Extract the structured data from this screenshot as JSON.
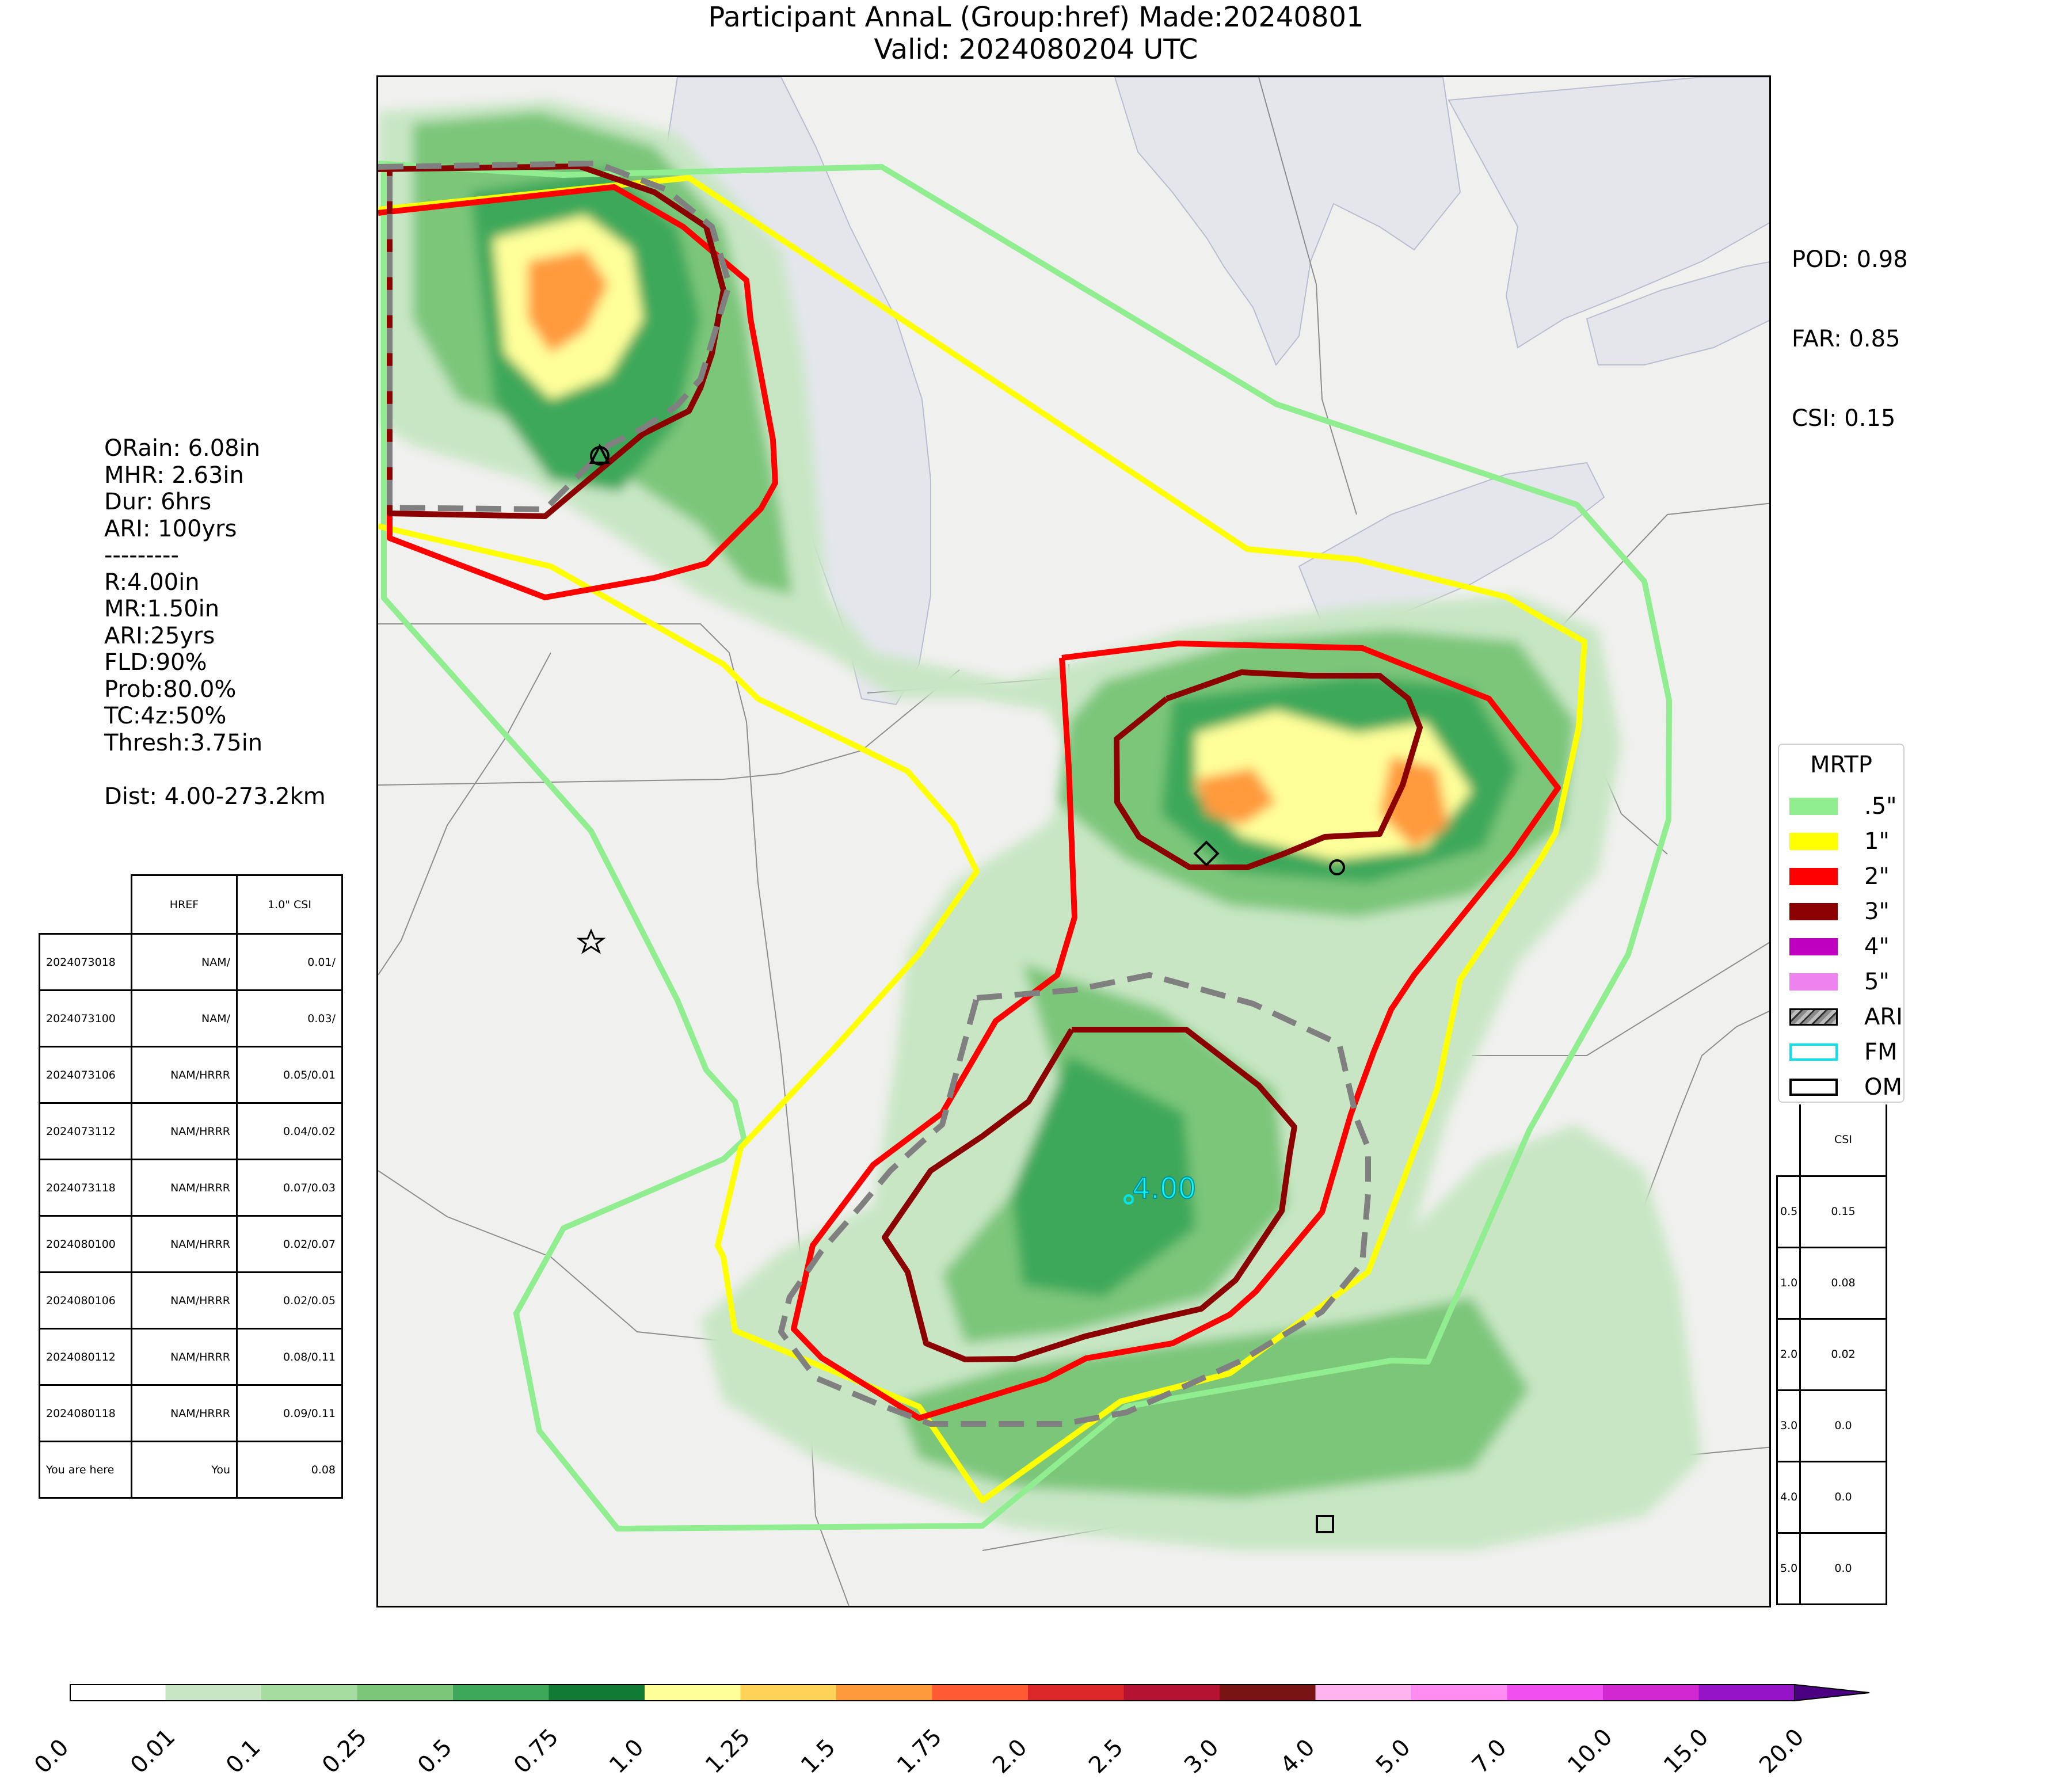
{
  "header": {
    "title_line1": "Participant AnnaL (Group:href) Made:20240801",
    "title_line2": "Valid: 2024080204 UTC"
  },
  "scores": {
    "pod": "POD: 0.98",
    "far": "FAR: 0.85",
    "csi": "CSI: 0.15"
  },
  "info": {
    "lines": [
      "ORain: 6.08in",
      "MHR: 2.63in",
      "Dur: 6hrs",
      "ARI: 100yrs",
      "---------",
      "R:4.00in",
      "MR:1.50in",
      "ARI:25yrs",
      "FLD:90%",
      "Prob:80.0%",
      "TC:4z:50%",
      "Thresh:3.75in",
      "",
      "Dist: 4.00-273.2km"
    ]
  },
  "history_table": {
    "headers": [
      "",
      "HREF",
      "1.0\" CSI"
    ],
    "rows": [
      [
        "2024073018",
        "NAM/",
        "0.01/"
      ],
      [
        "2024073100",
        "NAM/",
        "0.03/"
      ],
      [
        "2024073106",
        "NAM/HRRR",
        "0.05/0.01"
      ],
      [
        "2024073112",
        "NAM/HRRR",
        "0.04/0.02"
      ],
      [
        "2024073118",
        "NAM/HRRR",
        "0.07/0.03"
      ],
      [
        "2024080100",
        "NAM/HRRR",
        "0.02/0.07"
      ],
      [
        "2024080106",
        "NAM/HRRR",
        "0.02/0.05"
      ],
      [
        "2024080112",
        "NAM/HRRR",
        "0.08/0.11"
      ],
      [
        "2024080118",
        "NAM/HRRR",
        "0.09/0.11"
      ],
      [
        "You are here",
        "You",
        "0.08"
      ]
    ]
  },
  "legend": {
    "title": "MRTP",
    "items": [
      {
        "label": ".5\"",
        "color": "#90ee90",
        "type": "fill"
      },
      {
        "label": "1\"",
        "color": "#ffff00",
        "type": "fill"
      },
      {
        "label": "2\"",
        "color": "#ff0000",
        "type": "fill"
      },
      {
        "label": "3\"",
        "color": "#8b0000",
        "type": "fill"
      },
      {
        "label": "4\"",
        "color": "#c000c0",
        "type": "fill"
      },
      {
        "label": "5\"",
        "color": "#ee82ee",
        "type": "fill"
      },
      {
        "label": "ARI",
        "color": "#808080",
        "type": "hatch"
      },
      {
        "label": "FM",
        "color": "#00e5ee",
        "type": "outline"
      },
      {
        "label": "OM",
        "color": "#000000",
        "type": "outline"
      }
    ]
  },
  "category_csi": {
    "header": "CSI",
    "rows": [
      [
        "0.5",
        "0.15"
      ],
      [
        "1.0",
        "0.08"
      ],
      [
        "2.0",
        "0.02"
      ],
      [
        "3.0",
        "0.0"
      ],
      [
        "4.0",
        "0.0"
      ],
      [
        "5.0",
        "0.0"
      ]
    ]
  },
  "map": {
    "point_label": "4.00",
    "point_label_color": "#00ffff"
  },
  "colorbar": {
    "ticks": [
      "0.0",
      "0.01",
      "0.1",
      "0.25",
      "0.5",
      "0.75",
      "1.0",
      "1.25",
      "1.5",
      "1.75",
      "2.0",
      "2.5",
      "3.0",
      "4.0",
      "5.0",
      "7.0",
      "10.0",
      "15.0",
      "20.0"
    ],
    "colors": [
      "#ffffff",
      "#c8e6c4",
      "#a6dca0",
      "#7cc67a",
      "#3ea85a",
      "#117a34",
      "#ffff9a",
      "#ffd25a",
      "#ff9a3c",
      "#ff5a32",
      "#dc2828",
      "#b41432",
      "#781414",
      "#ffb4f0",
      "#ff8cf0",
      "#f050f0",
      "#d228d2",
      "#9614c8"
    ]
  }
}
